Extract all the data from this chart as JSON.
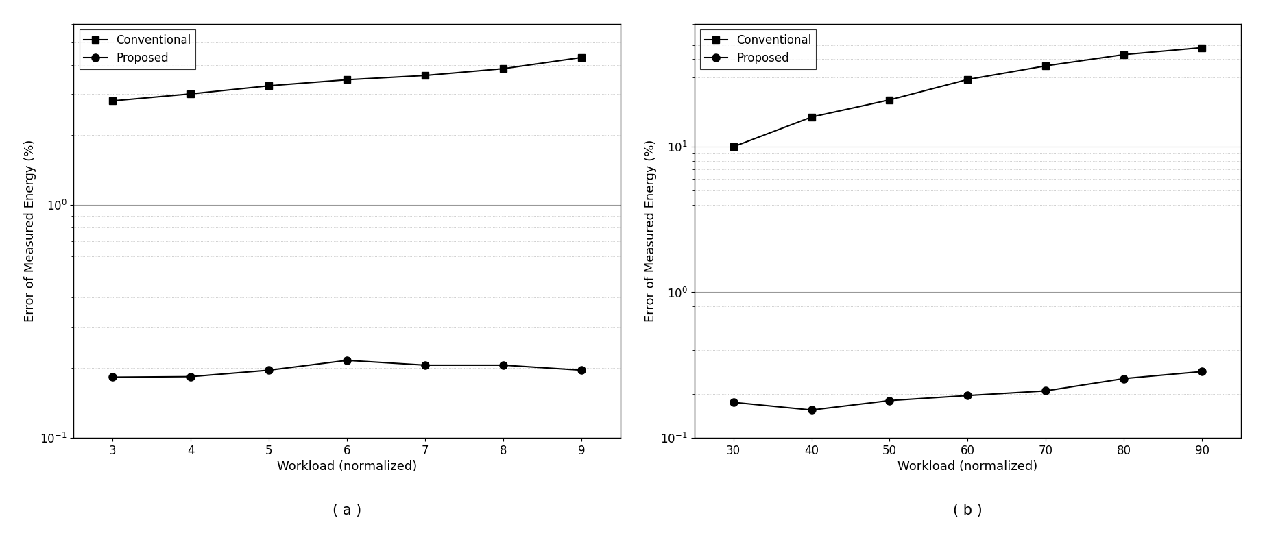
{
  "a": {
    "x": [
      3,
      4,
      5,
      6,
      7,
      8,
      9
    ],
    "conventional": [
      2.8,
      3.0,
      3.25,
      3.45,
      3.6,
      3.85,
      4.3
    ],
    "proposed": [
      0.182,
      0.183,
      0.195,
      0.215,
      0.205,
      0.205,
      0.195
    ],
    "ylim": [
      0.1,
      6.0
    ],
    "xlim": [
      2.5,
      9.5
    ],
    "xticks": [
      3,
      4,
      5,
      6,
      7,
      8,
      9
    ],
    "xlabel": "Workload (normalized)",
    "ylabel": "Error of Measured Energy (%)",
    "label": "( a )"
  },
  "b": {
    "x": [
      30,
      40,
      50,
      60,
      70,
      80,
      90
    ],
    "conventional": [
      10.0,
      16.0,
      21.0,
      29.0,
      36.0,
      43.0,
      48.0
    ],
    "proposed": [
      0.175,
      0.155,
      0.18,
      0.195,
      0.21,
      0.255,
      0.285
    ],
    "ylim": [
      0.1,
      70.0
    ],
    "xlim": [
      25,
      95
    ],
    "xticks": [
      30,
      40,
      50,
      60,
      70,
      80,
      90
    ],
    "xlabel": "Workload (normalized)",
    "ylabel": "Error of Measured Energy (%)",
    "label": "( b )"
  },
  "legend_conventional": "Conventional",
  "legend_proposed": "Proposed",
  "line_color": "#000000",
  "marker_square": "s",
  "marker_circle": "o",
  "marker_size": 7,
  "marker_size_fill": 8,
  "line_width": 1.5,
  "major_grid_color": "#999999",
  "minor_grid_color": "#bbbbbb",
  "major_grid_linestyle": "-",
  "minor_grid_linestyle": ":",
  "major_grid_linewidth": 0.8,
  "minor_grid_linewidth": 0.6,
  "background_color": "#ffffff",
  "label_fontsize": 13,
  "tick_fontsize": 12,
  "legend_fontsize": 12,
  "sublabel_fontsize": 15
}
